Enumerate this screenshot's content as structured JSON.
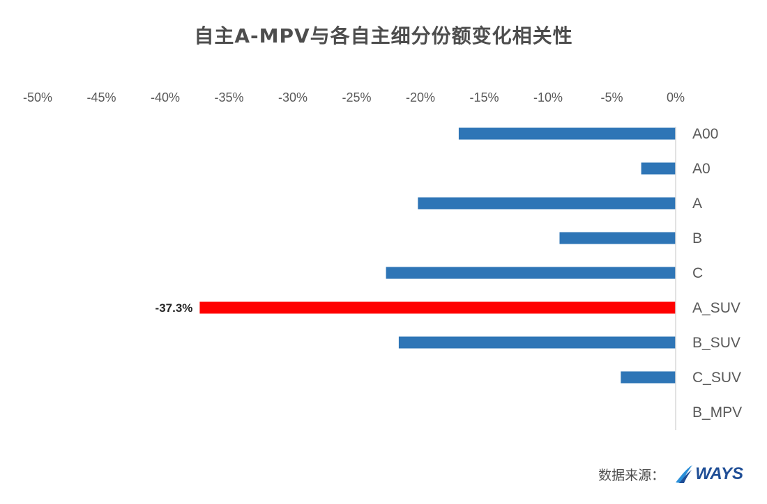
{
  "title": "自主A-MPV与各自主细分份额变化相关性",
  "source": {
    "label": "数据来源：",
    "logo_text": "WAYS"
  },
  "colors": {
    "bar": "#2e75b6",
    "highlight": "#ff0000",
    "axis": "#d9d9d9"
  },
  "chart_data": {
    "type": "bar",
    "orientation": "horizontal",
    "title": "自主A-MPV与各自主细分份额变化相关性",
    "categories": [
      "A00",
      "A0",
      "A",
      "B",
      "C",
      "A_SUV",
      "B_SUV",
      "C_SUV",
      "B_MPV"
    ],
    "values": [
      -17.0,
      -2.7,
      -20.2,
      -9.1,
      -22.7,
      -37.3,
      -21.7,
      -4.3,
      0.0
    ],
    "highlight_index": 5,
    "data_labels": [
      {
        "category": "A_SUV",
        "text": "-37.3%"
      }
    ],
    "xlim": [
      -50,
      0
    ],
    "x_ticks": [
      -50,
      -45,
      -40,
      -35,
      -30,
      -25,
      -20,
      -15,
      -10,
      -5,
      0
    ],
    "x_tick_labels": [
      "-50%",
      "-45%",
      "-40%",
      "-35%",
      "-30%",
      "-25%",
      "-20%",
      "-15%",
      "-10%",
      "-5%",
      "0%"
    ],
    "x_axis_position": "top",
    "category_axis_position": "right",
    "grid": false,
    "legend": "none",
    "xlabel": "",
    "ylabel": ""
  }
}
